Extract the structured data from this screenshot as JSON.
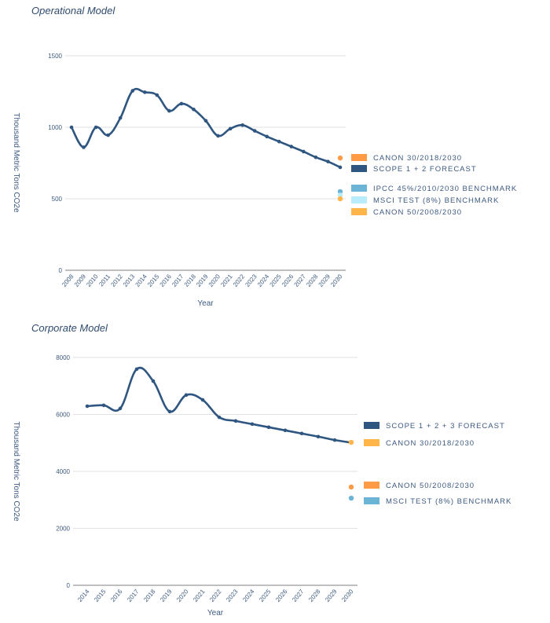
{
  "chart_data": [
    {
      "type": "line",
      "title": "Operational Model",
      "xlabel": "Year",
      "ylabel": "Thousand Metric Tons CO2e",
      "ylim": [
        0,
        1500
      ],
      "yticks": [
        0,
        500,
        1000,
        1500
      ],
      "x": [
        2008,
        2009,
        2010,
        2011,
        2012,
        2013,
        2014,
        2015,
        2016,
        2017,
        2018,
        2019,
        2020,
        2021,
        2022,
        2023,
        2024,
        2025,
        2026,
        2027,
        2028,
        2029,
        2030
      ],
      "series": [
        {
          "name": "SCOPE 1 + 2 FORECAST",
          "color": "#2e5680",
          "values": [
            1000,
            860,
            1000,
            945,
            1065,
            1255,
            1245,
            1225,
            1115,
            1165,
            1125,
            1045,
            940,
            990,
            1015,
            975,
            935,
            900,
            865,
            830,
            790,
            760,
            720
          ]
        }
      ],
      "points": [
        {
          "name": "CANON 30/2018/2030",
          "color": "#ff9a45",
          "x": 2030,
          "y": 785
        },
        {
          "name": "IPCC 45%/2010/2030 BENCHMARK",
          "color": "#6cb4d6",
          "x": 2030,
          "y": 550
        },
        {
          "name": "MSCI TEST (8%) BENCHMARK",
          "color": "#b8ecfa",
          "x": 2030,
          "y": 525
        },
        {
          "name": "CANON 50/2008/2030",
          "color": "#ffb547",
          "x": 2030,
          "y": 500
        }
      ],
      "legend": [
        {
          "label": "CANON 30/2018/2030",
          "color": "#ff9a45"
        },
        {
          "label": "SCOPE 1 + 2 FORECAST",
          "color": "#2e5680"
        },
        {
          "label": "IPCC 45%/2010/2030 BENCHMARK",
          "color": "#6cb4d6"
        },
        {
          "label": "MSCI TEST (8%) BENCHMARK",
          "color": "#b8ecfa"
        },
        {
          "label": "CANON 50/2008/2030",
          "color": "#ffb547"
        }
      ],
      "legend_position": "right",
      "grid": true
    },
    {
      "type": "line",
      "title": "Corporate Model",
      "xlabel": "Year",
      "ylabel": "Thousand Metric Tons CO2e",
      "ylim": [
        0,
        8000
      ],
      "yticks": [
        0,
        2000,
        4000,
        6000,
        8000
      ],
      "x": [
        2014,
        2015,
        2016,
        2017,
        2018,
        2019,
        2020,
        2021,
        2022,
        2023,
        2024,
        2025,
        2026,
        2027,
        2028,
        2029,
        2030
      ],
      "series": [
        {
          "name": "SCOPE 1 + 2 + 3 FORECAST",
          "color": "#2e5680",
          "values": [
            6290,
            6320,
            6210,
            7590,
            7170,
            6100,
            6680,
            6510,
            5900,
            5770,
            5660,
            5550,
            5440,
            5330,
            5220,
            5100,
            5010
          ]
        }
      ],
      "points": [
        {
          "name": "CANON 30/2018/2030",
          "color": "#ffb547",
          "x": 2030,
          "y": 5020
        },
        {
          "name": "CANON 50/2008/2030",
          "color": "#ff9a45",
          "x": 2030,
          "y": 3450
        },
        {
          "name": "MSCI TEST (8%) BENCHMARK",
          "color": "#6cb4d6",
          "x": 2030,
          "y": 3060
        }
      ],
      "legend": [
        {
          "label": "SCOPE 1 + 2 + 3 FORECAST",
          "color": "#2e5680"
        },
        {
          "label": "CANON 30/2018/2030",
          "color": "#ffb547"
        },
        {
          "label": "CANON 50/2008/2030",
          "color": "#ff9a45"
        },
        {
          "label": "MSCI TEST (8%) BENCHMARK",
          "color": "#6cb4d6"
        }
      ],
      "legend_position": "right",
      "grid": true
    }
  ]
}
